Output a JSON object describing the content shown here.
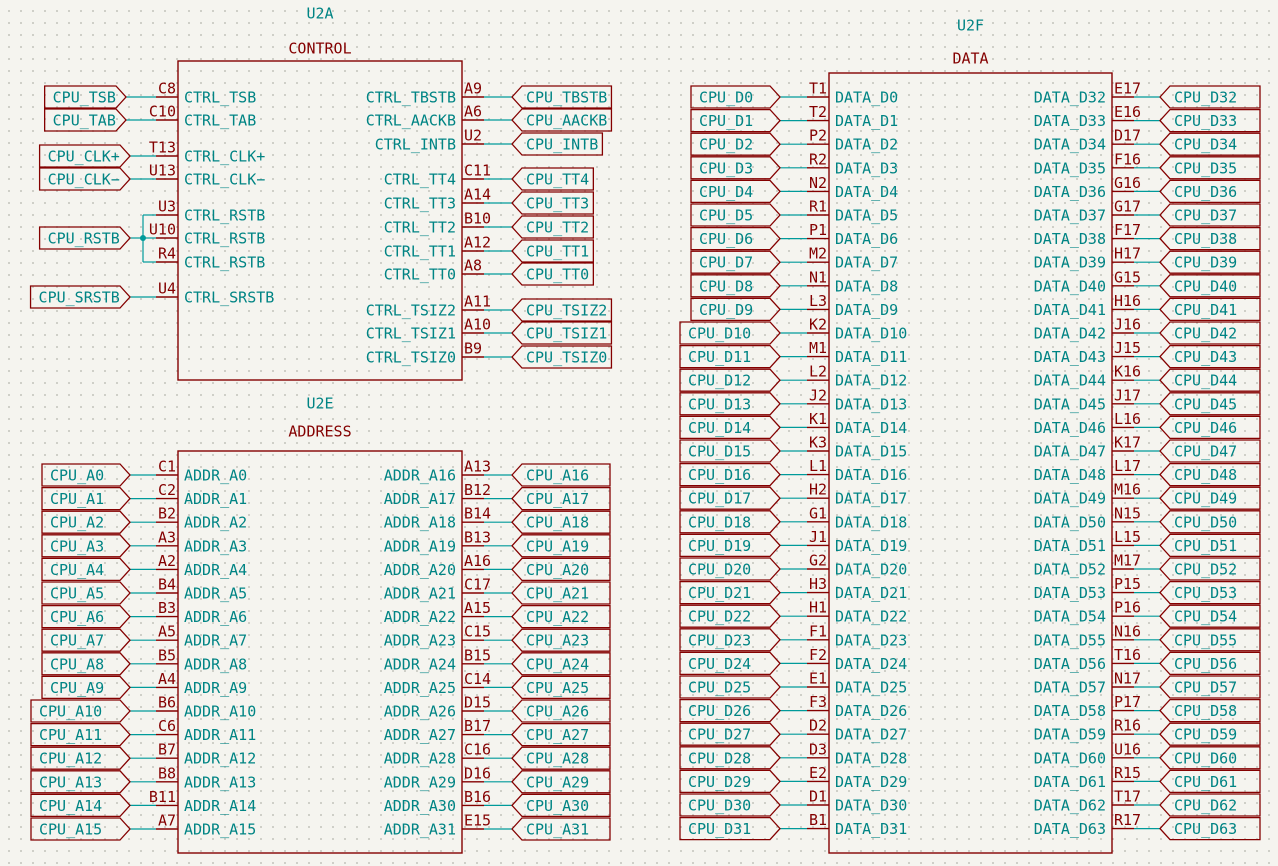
{
  "colors": {
    "body_stroke": "#840000",
    "pin": "#840000",
    "text": "#008484",
    "wire": "#009a9a",
    "label_border": "#840000"
  },
  "symbols": [
    {
      "ref": "U2A",
      "value": "CONTROL",
      "left_pins": [
        {
          "num": "C8",
          "name": "CTRL_TSB",
          "net": "CPU_TSB"
        },
        {
          "num": "C10",
          "name": "CTRL_TAB",
          "net": "CPU_TAB"
        },
        {
          "num": "T13",
          "name": "CTRL_CLK+",
          "net": "CPU_CLK+"
        },
        {
          "num": "U13",
          "name": "CTRL_CLK−",
          "net": "CPU_CLK−"
        },
        {
          "num": "U3",
          "name": "CTRL_RSTB"
        },
        {
          "num": "U10",
          "name": "CTRL_RSTB",
          "net": "CPU_RSTB"
        },
        {
          "num": "R4",
          "name": "CTRL_RSTB"
        },
        {
          "num": "U4",
          "name": "CTRL_SRSTB",
          "net": "CPU_SRSTB"
        }
      ],
      "right_pins": [
        {
          "num": "A9",
          "name": "CTRL_TBSTB",
          "net": "CPU_TBSTB"
        },
        {
          "num": "A6",
          "name": "CTRL_AACKB",
          "net": "CPU_AACKB"
        },
        {
          "num": "U2",
          "name": "CTRL_INTB",
          "net": "CPU_INTB"
        },
        {
          "num": "C11",
          "name": "CTRL_TT4",
          "net": "CPU_TT4"
        },
        {
          "num": "A14",
          "name": "CTRL_TT3",
          "net": "CPU_TT3"
        },
        {
          "num": "B10",
          "name": "CTRL_TT2",
          "net": "CPU_TT2"
        },
        {
          "num": "A12",
          "name": "CTRL_TT1",
          "net": "CPU_TT1"
        },
        {
          "num": "A8",
          "name": "CTRL_TT0",
          "net": "CPU_TT0"
        },
        {
          "num": "A11",
          "name": "CTRL_TSIZ2",
          "net": "CPU_TSIZ2"
        },
        {
          "num": "A10",
          "name": "CTRL_TSIZ1",
          "net": "CPU_TSIZ1"
        },
        {
          "num": "B9",
          "name": "CTRL_TSIZ0",
          "net": "CPU_TSIZ0"
        }
      ]
    },
    {
      "ref": "U2E",
      "value": "ADDRESS",
      "left_pins": [
        {
          "num": "C1",
          "name": "ADDR_A0",
          "net": "CPU_A0"
        },
        {
          "num": "C2",
          "name": "ADDR_A1",
          "net": "CPU_A1"
        },
        {
          "num": "B2",
          "name": "ADDR_A2",
          "net": "CPU_A2"
        },
        {
          "num": "A3",
          "name": "ADDR_A3",
          "net": "CPU_A3"
        },
        {
          "num": "A2",
          "name": "ADDR_A4",
          "net": "CPU_A4"
        },
        {
          "num": "B4",
          "name": "ADDR_A5",
          "net": "CPU_A5"
        },
        {
          "num": "B3",
          "name": "ADDR_A6",
          "net": "CPU_A6"
        },
        {
          "num": "A5",
          "name": "ADDR_A7",
          "net": "CPU_A7"
        },
        {
          "num": "B5",
          "name": "ADDR_A8",
          "net": "CPU_A8"
        },
        {
          "num": "A4",
          "name": "ADDR_A9",
          "net": "CPU_A9"
        },
        {
          "num": "B6",
          "name": "ADDR_A10",
          "net": "CPU_A10"
        },
        {
          "num": "C6",
          "name": "ADDR_A11",
          "net": "CPU_A11"
        },
        {
          "num": "B7",
          "name": "ADDR_A12",
          "net": "CPU_A12"
        },
        {
          "num": "B8",
          "name": "ADDR_A13",
          "net": "CPU_A13"
        },
        {
          "num": "B11",
          "name": "ADDR_A14",
          "net": "CPU_A14"
        },
        {
          "num": "A7",
          "name": "ADDR_A15",
          "net": "CPU_A15"
        }
      ],
      "right_pins": [
        {
          "num": "A13",
          "name": "ADDR_A16",
          "net": "CPU_A16"
        },
        {
          "num": "B12",
          "name": "ADDR_A17",
          "net": "CPU_A17"
        },
        {
          "num": "B14",
          "name": "ADDR_A18",
          "net": "CPU_A18"
        },
        {
          "num": "B13",
          "name": "ADDR_A19",
          "net": "CPU_A19"
        },
        {
          "num": "A16",
          "name": "ADDR_A20",
          "net": "CPU_A20"
        },
        {
          "num": "C17",
          "name": "ADDR_A21",
          "net": "CPU_A21"
        },
        {
          "num": "A15",
          "name": "ADDR_A22",
          "net": "CPU_A22"
        },
        {
          "num": "C15",
          "name": "ADDR_A23",
          "net": "CPU_A23"
        },
        {
          "num": "B15",
          "name": "ADDR_A24",
          "net": "CPU_A24"
        },
        {
          "num": "C14",
          "name": "ADDR_A25",
          "net": "CPU_A25"
        },
        {
          "num": "D15",
          "name": "ADDR_A26",
          "net": "CPU_A26"
        },
        {
          "num": "B17",
          "name": "ADDR_A27",
          "net": "CPU_A27"
        },
        {
          "num": "C16",
          "name": "ADDR_A28",
          "net": "CPU_A28"
        },
        {
          "num": "D16",
          "name": "ADDR_A29",
          "net": "CPU_A29"
        },
        {
          "num": "B16",
          "name": "ADDR_A30",
          "net": "CPU_A30"
        },
        {
          "num": "E15",
          "name": "ADDR_A31",
          "net": "CPU_A31"
        }
      ]
    },
    {
      "ref": "U2F",
      "value": "DATA",
      "left_pins": [
        {
          "num": "T1",
          "name": "DATA_D0",
          "net": "CPU_D0"
        },
        {
          "num": "T2",
          "name": "DATA_D1",
          "net": "CPU_D1"
        },
        {
          "num": "P2",
          "name": "DATA_D2",
          "net": "CPU_D2"
        },
        {
          "num": "R2",
          "name": "DATA_D3",
          "net": "CPU_D3"
        },
        {
          "num": "N2",
          "name": "DATA_D4",
          "net": "CPU_D4"
        },
        {
          "num": "R1",
          "name": "DATA_D5",
          "net": "CPU_D5"
        },
        {
          "num": "P1",
          "name": "DATA_D6",
          "net": "CPU_D6"
        },
        {
          "num": "M2",
          "name": "DATA_D7",
          "net": "CPU_D7"
        },
        {
          "num": "N1",
          "name": "DATA_D8",
          "net": "CPU_D8"
        },
        {
          "num": "L3",
          "name": "DATA_D9",
          "net": "CPU_D9"
        },
        {
          "num": "K2",
          "name": "DATA_D10",
          "net": "CPU_D10"
        },
        {
          "num": "M1",
          "name": "DATA_D11",
          "net": "CPU_D11"
        },
        {
          "num": "L2",
          "name": "DATA_D12",
          "net": "CPU_D12"
        },
        {
          "num": "J2",
          "name": "DATA_D13",
          "net": "CPU_D13"
        },
        {
          "num": "K1",
          "name": "DATA_D14",
          "net": "CPU_D14"
        },
        {
          "num": "K3",
          "name": "DATA_D15",
          "net": "CPU_D15"
        },
        {
          "num": "L1",
          "name": "DATA_D16",
          "net": "CPU_D16"
        },
        {
          "num": "H2",
          "name": "DATA_D17",
          "net": "CPU_D17"
        },
        {
          "num": "G1",
          "name": "DATA_D18",
          "net": "CPU_D18"
        },
        {
          "num": "J1",
          "name": "DATA_D19",
          "net": "CPU_D19"
        },
        {
          "num": "G2",
          "name": "DATA_D20",
          "net": "CPU_D20"
        },
        {
          "num": "H3",
          "name": "DATA_D21",
          "net": "CPU_D21"
        },
        {
          "num": "H1",
          "name": "DATA_D22",
          "net": "CPU_D22"
        },
        {
          "num": "F1",
          "name": "DATA_D23",
          "net": "CPU_D23"
        },
        {
          "num": "F2",
          "name": "DATA_D24",
          "net": "CPU_D24"
        },
        {
          "num": "E1",
          "name": "DATA_D25",
          "net": "CPU_D25"
        },
        {
          "num": "F3",
          "name": "DATA_D26",
          "net": "CPU_D26"
        },
        {
          "num": "D2",
          "name": "DATA_D27",
          "net": "CPU_D27"
        },
        {
          "num": "D3",
          "name": "DATA_D28",
          "net": "CPU_D28"
        },
        {
          "num": "E2",
          "name": "DATA_D29",
          "net": "CPU_D29"
        },
        {
          "num": "D1",
          "name": "DATA_D30",
          "net": "CPU_D30"
        },
        {
          "num": "B1",
          "name": "DATA_D31",
          "net": "CPU_D31"
        }
      ],
      "right_pins": [
        {
          "num": "E17",
          "name": "DATA_D32",
          "net": "CPU_D32"
        },
        {
          "num": "E16",
          "name": "DATA_D33",
          "net": "CPU_D33"
        },
        {
          "num": "D17",
          "name": "DATA_D34",
          "net": "CPU_D34"
        },
        {
          "num": "F16",
          "name": "DATA_D35",
          "net": "CPU_D35"
        },
        {
          "num": "G16",
          "name": "DATA_D36",
          "net": "CPU_D36"
        },
        {
          "num": "G17",
          "name": "DATA_D37",
          "net": "CPU_D37"
        },
        {
          "num": "F17",
          "name": "DATA_D38",
          "net": "CPU_D38"
        },
        {
          "num": "H17",
          "name": "DATA_D39",
          "net": "CPU_D39"
        },
        {
          "num": "G15",
          "name": "DATA_D40",
          "net": "CPU_D40"
        },
        {
          "num": "H16",
          "name": "DATA_D41",
          "net": "CPU_D41"
        },
        {
          "num": "J16",
          "name": "DATA_D42",
          "net": "CPU_D42"
        },
        {
          "num": "J15",
          "name": "DATA_D43",
          "net": "CPU_D43"
        },
        {
          "num": "K16",
          "name": "DATA_D44",
          "net": "CPU_D44"
        },
        {
          "num": "J17",
          "name": "DATA_D45",
          "net": "CPU_D45"
        },
        {
          "num": "L16",
          "name": "DATA_D46",
          "net": "CPU_D46"
        },
        {
          "num": "K17",
          "name": "DATA_D47",
          "net": "CPU_D47"
        },
        {
          "num": "L17",
          "name": "DATA_D48",
          "net": "CPU_D48"
        },
        {
          "num": "M16",
          "name": "DATA_D49",
          "net": "CPU_D49"
        },
        {
          "num": "N15",
          "name": "DATA_D50",
          "net": "CPU_D50"
        },
        {
          "num": "L15",
          "name": "DATA_D51",
          "net": "CPU_D51"
        },
        {
          "num": "M17",
          "name": "DATA_D52",
          "net": "CPU_D52"
        },
        {
          "num": "P15",
          "name": "DATA_D53",
          "net": "CPU_D53"
        },
        {
          "num": "P16",
          "name": "DATA_D54",
          "net": "CPU_D54"
        },
        {
          "num": "N16",
          "name": "DATA_D55",
          "net": "CPU_D55"
        },
        {
          "num": "T16",
          "name": "DATA_D56",
          "net": "CPU_D56"
        },
        {
          "num": "N17",
          "name": "DATA_D57",
          "net": "CPU_D57"
        },
        {
          "num": "P17",
          "name": "DATA_D58",
          "net": "CPU_D58"
        },
        {
          "num": "R16",
          "name": "DATA_D59",
          "net": "CPU_D59"
        },
        {
          "num": "U16",
          "name": "DATA_D60",
          "net": "CPU_D60"
        },
        {
          "num": "R15",
          "name": "DATA_D61",
          "net": "CPU_D61"
        },
        {
          "num": "T17",
          "name": "DATA_D62",
          "net": "CPU_D62"
        },
        {
          "num": "R17",
          "name": "DATA_D63",
          "net": "CPU_D63"
        }
      ]
    }
  ]
}
